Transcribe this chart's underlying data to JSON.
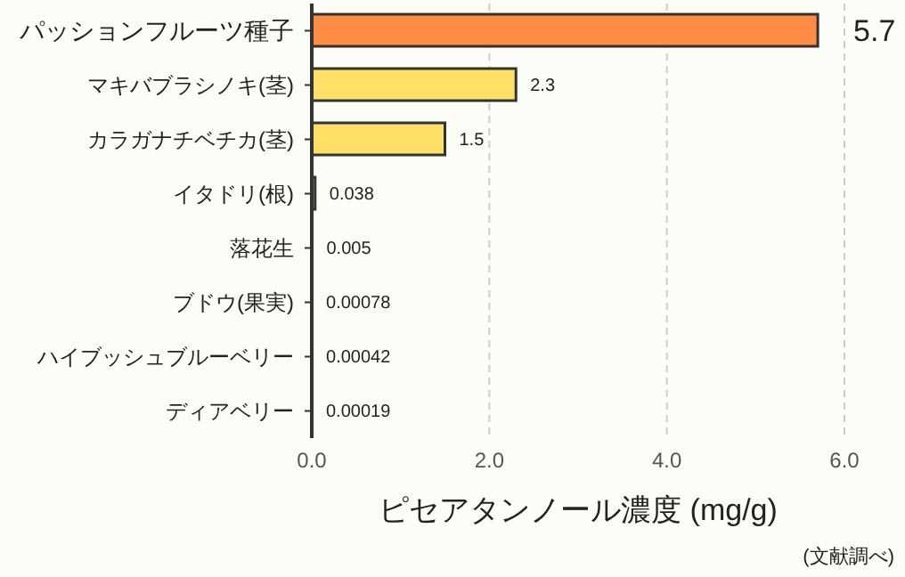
{
  "chart_data": {
    "type": "bar",
    "orientation": "horizontal",
    "categories": [
      "パッションフルーツ種子",
      "マキバブラシノキ(茎)",
      "カラガナチベチカ(茎)",
      "イタドリ(根)",
      "落花生",
      "ブドウ(果実)",
      "ハイブッシュブルーベリー",
      "ディアベリー"
    ],
    "values": [
      5.7,
      2.3,
      1.5,
      0.038,
      0.005,
      0.00078,
      0.00042,
      0.00019
    ],
    "colors": [
      "#ff8c42",
      "#ffe066",
      "#ffe066",
      "#ffe066",
      "#ffe066",
      "#ffe066",
      "#ffe066",
      "#ffe066"
    ],
    "xlabel": "ピセアタンノール濃度 (mg/g)",
    "xlim": [
      0,
      6
    ],
    "xticks": [
      {
        "value": 0,
        "label": "0.0"
      },
      {
        "value": 2,
        "label": "2.0"
      },
      {
        "value": 4,
        "label": "4.0"
      },
      {
        "value": 6,
        "label": "6.0"
      }
    ],
    "grid": "x",
    "data_labels": true,
    "annotations": [
      "(文献調べ)"
    ]
  }
}
